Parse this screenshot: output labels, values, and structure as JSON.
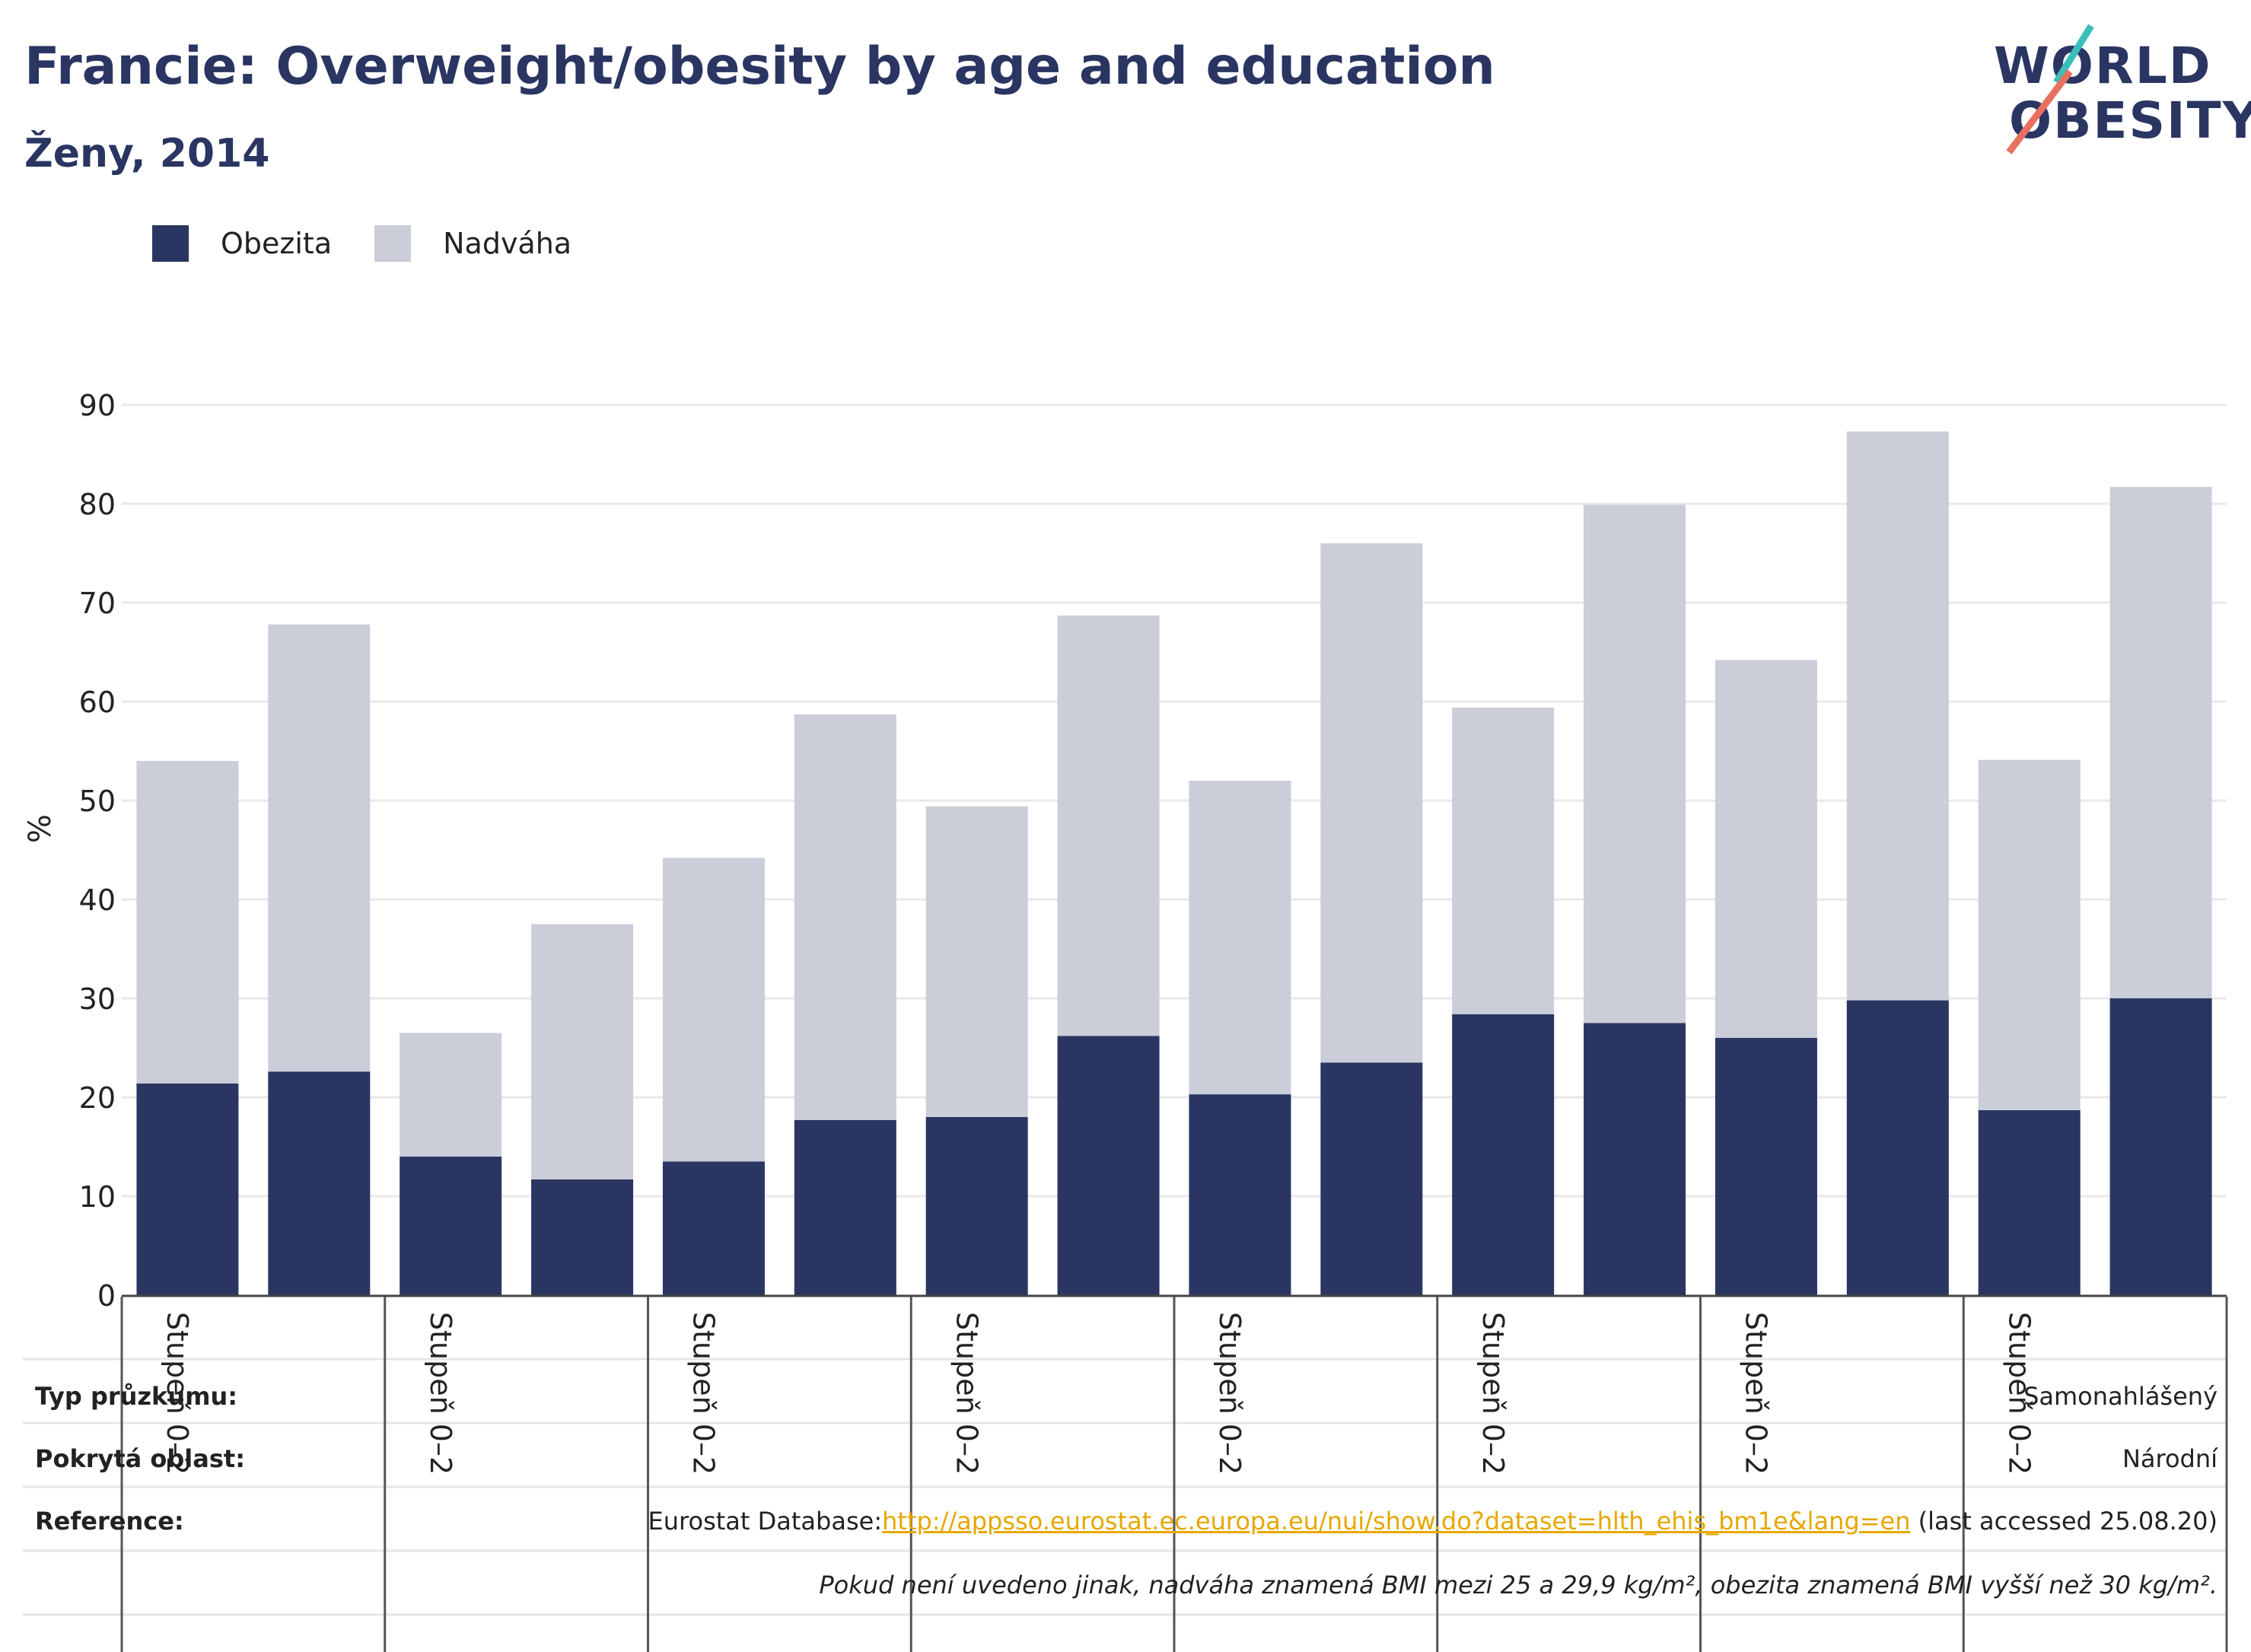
{
  "header": {
    "title": "Francie: Overweight/obesity by age and education",
    "subtitle": "Ženy, 2014"
  },
  "logo": {
    "line1": "WORLD",
    "line2": "OBESITY",
    "colors": {
      "teal": "#3bbfb9",
      "coral": "#e8705f",
      "navy": "#2a3562"
    }
  },
  "legend": [
    {
      "label": "Obezita",
      "color": "#2a3562"
    },
    {
      "label": "Nadváha",
      "color": "#cbcdd9"
    }
  ],
  "chart_data": {
    "type": "bar",
    "stacked": true,
    "ylabel": "%",
    "ylim": [
      0,
      90
    ],
    "yticks": [
      0,
      10,
      20,
      30,
      40,
      50,
      60,
      70,
      80,
      90
    ],
    "grid": true,
    "legend_position": "top-left",
    "group_labels": [
      "Stupeň 0–2",
      "Stupeň 0–2",
      "Stupeň 0–2",
      "Stupeň 0–2",
      "Stupeň 0–2",
      "Stupeň 0–2",
      "Stupeň 0–2",
      "Stupeň 0–2"
    ],
    "series": [
      {
        "name": "Obezita",
        "color": "#2a3562",
        "values": [
          21.4,
          22.6,
          14.0,
          11.7,
          13.5,
          17.7,
          18.0,
          26.2,
          20.3,
          23.5,
          28.4,
          27.5,
          26.0,
          29.8,
          18.7,
          30.0
        ]
      },
      {
        "name": "Nadváha",
        "color": "#cbcdd9",
        "values": [
          32.6,
          45.2,
          12.5,
          25.8,
          30.7,
          41.0,
          31.4,
          42.5,
          31.7,
          52.5,
          31.0,
          52.4,
          38.2,
          57.5,
          35.4,
          51.7
        ]
      }
    ]
  },
  "info": {
    "survey_type_label": "Typ průzkumu:",
    "survey_type_value": "Samonahlášený",
    "coverage_label": "Pokrytá oblast:",
    "coverage_value": "Národní",
    "reference_label": "Reference:",
    "reference_prefix": "Eurostat Database:",
    "reference_url": "http://appsso.eurostat.ec.europa.eu/nui/show.do?dataset=hlth_ehis_bm1e&lang=en",
    "reference_suffix": " (last accessed 25.08.20)",
    "note": "Pokud není uvedeno jinak, nadváha znamená BMI mezi 25 a 29,9 kg/m², obezita znamená BMI vyšší než 30 kg/m²."
  }
}
